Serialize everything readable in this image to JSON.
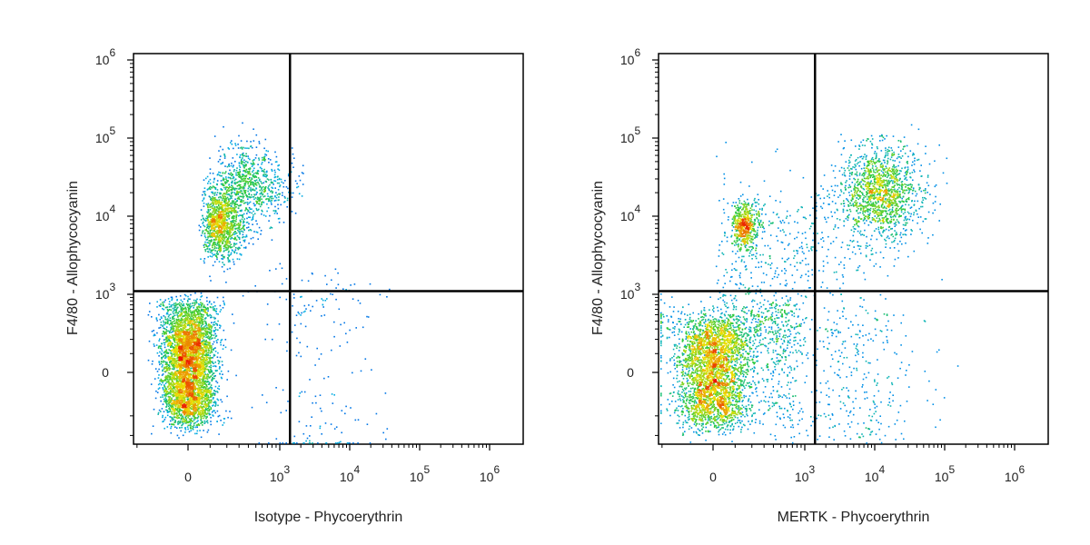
{
  "chart_data": [
    {
      "type": "scatter",
      "subtype": "flow-cytometry-density-dot-plot",
      "xlabel": "Isotype - Phycoerythrin",
      "ylabel": "F4/80 - Allophycocyanin",
      "x_scale": "biexponential",
      "y_scale": "biexponential",
      "x_ticks": [
        "0",
        "10^3",
        "10^4",
        "10^5",
        "10^6"
      ],
      "y_ticks": [
        "0",
        "10^3",
        "10^4",
        "10^5",
        "10^6"
      ],
      "gate": {
        "x": 1400,
        "y": 1100
      },
      "quadrant_lines": true,
      "color_scale": "blue-green-yellow-red density",
      "populations": [
        {
          "x": 0,
          "y": 0,
          "share": 0.55,
          "x_spread": 60,
          "y_spread": 180
        },
        {
          "x": 0,
          "y": 400,
          "share": 0.12,
          "x_spread": 70,
          "y_spread": 250
        },
        {
          "x": 150,
          "y": 8000,
          "share": 0.17,
          "x_spread": 0.18,
          "y_spread": 0.22
        },
        {
          "x": 400,
          "y": 25000,
          "share": 0.13,
          "x_spread": 0.25,
          "y_spread": 0.25
        },
        {
          "x": 3000,
          "y": 200,
          "share": 0.03,
          "x_spread": 0.5,
          "y_spread": 800
        }
      ]
    },
    {
      "type": "scatter",
      "subtype": "flow-cytometry-density-dot-plot",
      "xlabel": "MERTK - Phycoerythrin",
      "ylabel": "F4/80 - Allophycocyanin",
      "x_scale": "biexponential",
      "y_scale": "biexponential",
      "x_ticks": [
        "0",
        "10^3",
        "10^4",
        "10^5",
        "10^6"
      ],
      "y_ticks": [
        "0",
        "10^3",
        "10^4",
        "10^5",
        "10^6"
      ],
      "gate": {
        "x": 1400,
        "y": 1100
      },
      "quadrant_lines": true,
      "color_scale": "blue-green-yellow-red density",
      "populations": [
        {
          "x": 0,
          "y": 0,
          "share": 0.45,
          "x_spread": 80,
          "y_spread": 200
        },
        {
          "x": 200,
          "y": 200,
          "share": 0.13,
          "x_spread": 300,
          "y_spread": 300
        },
        {
          "x": 150,
          "y": 8000,
          "share": 0.08,
          "x_spread": 0.12,
          "y_spread": 0.15
        },
        {
          "x": 12000,
          "y": 20000,
          "share": 0.22,
          "x_spread": 0.3,
          "y_spread": 0.3
        },
        {
          "x": 500,
          "y": 3000,
          "share": 0.07,
          "x_spread": 0.6,
          "y_spread": 0.5
        },
        {
          "x": 5000,
          "y": 0,
          "share": 0.05,
          "x_spread": 0.5,
          "y_spread": 300
        }
      ]
    }
  ]
}
